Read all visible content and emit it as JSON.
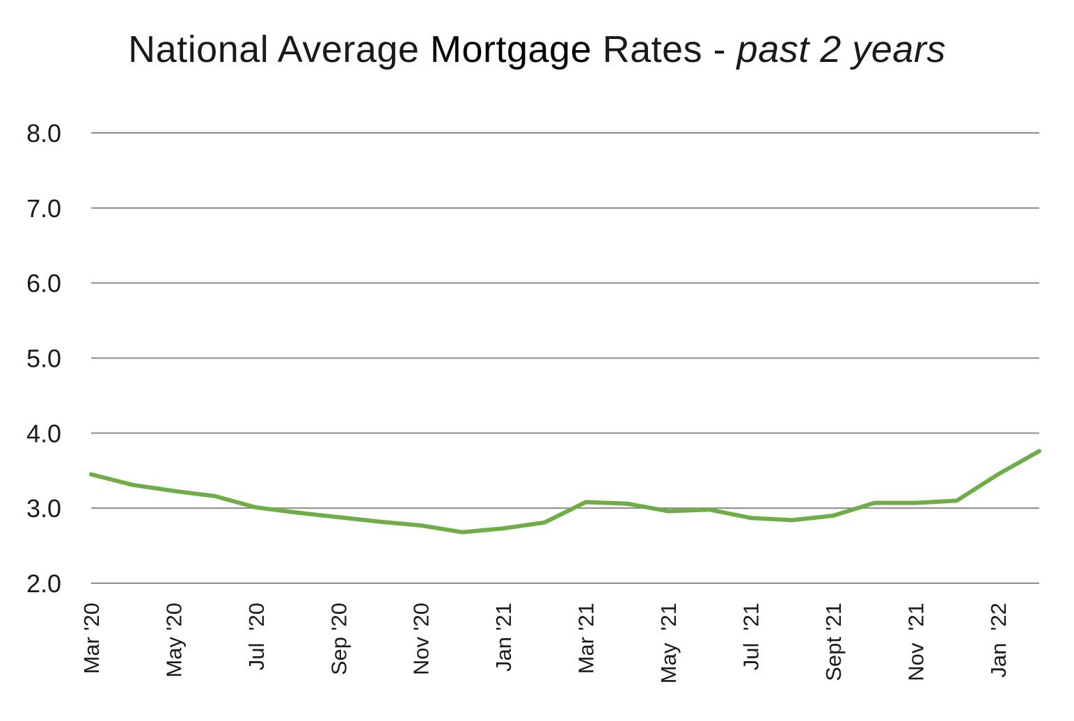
{
  "chart_data": {
    "type": "line",
    "title": {
      "part1": "National Average ",
      "part2": "Mortgage",
      "part3": " Rates - ",
      "part4": "past 2 years"
    },
    "xlabel": "",
    "ylabel": "",
    "ylim": [
      2.0,
      8.0
    ],
    "yticks": [
      "8.0",
      "7.0",
      "6.0",
      "5.0",
      "4.0",
      "3.0",
      "2.0"
    ],
    "grid": true,
    "legend": "none",
    "line_color": "#70ad47",
    "gridline_color": "#8c8c8c",
    "x_tick_labels": [
      {
        "index": 0,
        "label": "Mar '20"
      },
      {
        "index": 2,
        "label": "May '20"
      },
      {
        "index": 4,
        "label": "Jul  '20"
      },
      {
        "index": 6,
        "label": "Sep '20"
      },
      {
        "index": 8,
        "label": "Nov '20"
      },
      {
        "index": 10,
        "label": "Jan '21"
      },
      {
        "index": 12,
        "label": "Mar '21"
      },
      {
        "index": 14,
        "label": "May  '21"
      },
      {
        "index": 16,
        "label": "Jul  '21"
      },
      {
        "index": 18,
        "label": "Sept '21"
      },
      {
        "index": 20,
        "label": "Nov  '21"
      },
      {
        "index": 22,
        "label": "Jan  '22"
      }
    ],
    "x": [
      "Mar '20",
      "Apr '20",
      "May '20",
      "Jun '20",
      "Jul '20",
      "Aug '20",
      "Sep '20",
      "Oct '20",
      "Nov '20",
      "Dec '20",
      "Jan '21",
      "Feb '21",
      "Mar '21",
      "Apr '21",
      "May '21",
      "Jun '21",
      "Jul '21",
      "Aug '21",
      "Sep '21",
      "Oct '21",
      "Nov '21",
      "Dec '21",
      "Jan '22",
      "Feb '22"
    ],
    "series": [
      {
        "values": [
          3.45,
          3.31,
          3.23,
          3.16,
          3.01,
          2.94,
          2.88,
          2.82,
          2.77,
          2.68,
          2.73,
          2.81,
          3.08,
          3.06,
          2.96,
          2.98,
          2.87,
          2.84,
          2.9,
          3.07,
          3.07,
          3.1,
          3.45,
          3.76
        ]
      }
    ]
  }
}
